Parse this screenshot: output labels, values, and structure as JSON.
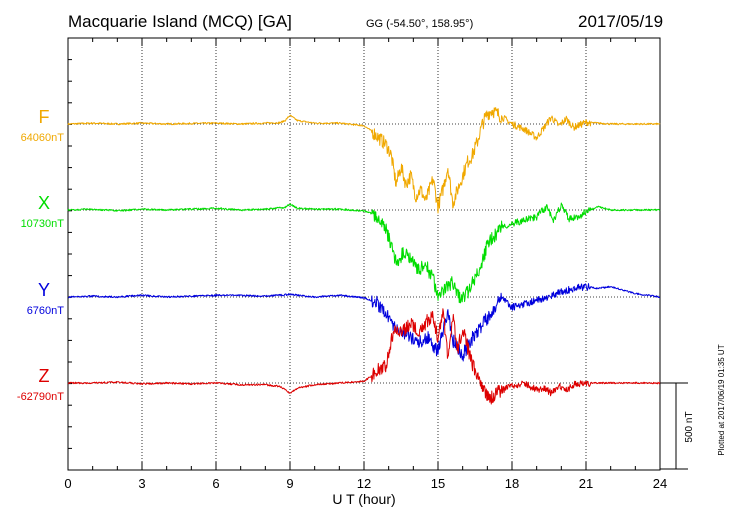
{
  "header": {
    "station": "Macquarie Island (MCQ)  [GA]",
    "coords": "GG (-54.50°, 158.95°)",
    "date": "2017/05/19"
  },
  "side_note": "Plotted at 2017/06/19 01:35 UT",
  "scale_label": "500 nT",
  "chart_data": {
    "type": "line",
    "xlabel": "U T (hour)",
    "xlim": [
      0,
      24
    ],
    "x_ticks": [
      0,
      3,
      6,
      9,
      12,
      15,
      18,
      21,
      24
    ],
    "grid": true,
    "scale_bar_nT": 500,
    "series": [
      {
        "name": "F",
        "baseline_label": "64060nT",
        "color": "#f0a800",
        "times": [
          0,
          1,
          2,
          3,
          4,
          5,
          6,
          7,
          8,
          8.6,
          8.8,
          9.0,
          9.3,
          10,
          11,
          12,
          12.3,
          12.6,
          12.9,
          13.1,
          13.3,
          13.5,
          13.7,
          13.9,
          14.1,
          14.3,
          14.5,
          14.8,
          15.0,
          15.2,
          15.4,
          15.6,
          15.8,
          16.0,
          16.2,
          16.4,
          16.6,
          16.8,
          17.0,
          17.2,
          17.5,
          18.0,
          18.5,
          19.0,
          19.3,
          19.6,
          19.9,
          20.2,
          20.5,
          21.0,
          22,
          23,
          24
        ],
        "values": [
          0,
          5,
          0,
          5,
          0,
          3,
          5,
          0,
          5,
          8,
          20,
          50,
          20,
          5,
          5,
          -10,
          -40,
          -80,
          -120,
          -180,
          -350,
          -250,
          -350,
          -300,
          -420,
          -380,
          -450,
          -320,
          -480,
          -380,
          -250,
          -460,
          -380,
          -300,
          -220,
          -180,
          -100,
          0,
          60,
          80,
          50,
          0,
          -30,
          -80,
          -20,
          40,
          -10,
          30,
          -20,
          10,
          0,
          0,
          0
        ]
      },
      {
        "name": "X",
        "baseline_label": "10730nT",
        "color": "#00dd00",
        "times": [
          0,
          1,
          2,
          3,
          4,
          5,
          6,
          7,
          8,
          8.8,
          9.0,
          9.3,
          10,
          11,
          12,
          12.3,
          12.6,
          12.9,
          13.1,
          13.3,
          13.6,
          13.9,
          14.2,
          14.5,
          14.8,
          15.0,
          15.3,
          15.6,
          15.9,
          16.2,
          16.5,
          16.8,
          17.0,
          17.3,
          17.6,
          18,
          18.5,
          19.0,
          19.4,
          19.7,
          20.0,
          20.3,
          20.7,
          21.0,
          21.5,
          22,
          23,
          24
        ],
        "values": [
          0,
          5,
          -5,
          5,
          0,
          5,
          10,
          0,
          5,
          15,
          35,
          10,
          5,
          5,
          -5,
          -20,
          -60,
          -120,
          -200,
          -300,
          -250,
          -280,
          -350,
          -320,
          -400,
          -500,
          -450,
          -420,
          -520,
          -480,
          -400,
          -300,
          -200,
          -150,
          -100,
          -80,
          -60,
          -40,
          20,
          -60,
          30,
          -50,
          -40,
          -10,
          20,
          0,
          0,
          0
        ]
      },
      {
        "name": "Y",
        "baseline_label": "6760nT",
        "color": "#0000dd",
        "times": [
          0,
          1,
          2,
          3,
          4,
          5,
          6,
          7,
          8,
          9,
          10,
          11,
          12,
          12.5,
          12.8,
          13.1,
          13.4,
          13.7,
          14.0,
          14.3,
          14.6,
          14.9,
          15.0,
          15.2,
          15.4,
          15.6,
          15.8,
          16.0,
          16.3,
          16.6,
          17.0,
          17.3,
          17.6,
          18,
          18.5,
          19,
          19.5,
          20,
          20.5,
          21,
          21.5,
          22,
          22.5,
          23,
          24
        ],
        "values": [
          0,
          5,
          0,
          10,
          0,
          5,
          10,
          10,
          5,
          15,
          0,
          10,
          -5,
          -30,
          -80,
          -150,
          -200,
          -220,
          -240,
          -260,
          -230,
          -300,
          -320,
          -200,
          -100,
          -250,
          -300,
          -340,
          -260,
          -200,
          -120,
          -60,
          0,
          -60,
          -40,
          -20,
          0,
          30,
          50,
          60,
          50,
          60,
          40,
          20,
          0
        ]
      },
      {
        "name": "Z",
        "baseline_label": "-62790nT",
        "color": "#dd0000",
        "times": [
          0,
          1,
          2,
          3,
          4,
          5,
          6,
          7,
          8,
          8.6,
          8.8,
          9.0,
          9.3,
          10,
          11,
          12,
          12.3,
          12.6,
          12.9,
          13.1,
          13.3,
          13.6,
          13.9,
          14.2,
          14.5,
          14.8,
          15.0,
          15.2,
          15.4,
          15.6,
          15.8,
          16.0,
          16.3,
          16.6,
          16.9,
          17.1,
          17.3,
          17.6,
          18.0,
          18.5,
          19.0,
          19.3,
          19.6,
          19.9,
          20.2,
          20.5,
          21,
          22,
          23,
          24
        ],
        "values": [
          0,
          0,
          5,
          -5,
          0,
          -5,
          0,
          -10,
          -10,
          -20,
          -40,
          -60,
          -30,
          -10,
          0,
          10,
          40,
          80,
          100,
          250,
          320,
          300,
          350,
          300,
          350,
          400,
          250,
          420,
          150,
          380,
          200,
          320,
          150,
          30,
          -50,
          -100,
          -60,
          -40,
          -20,
          0,
          -40,
          -30,
          -60,
          -20,
          -40,
          -10,
          0,
          0,
          0,
          0
        ]
      }
    ]
  }
}
